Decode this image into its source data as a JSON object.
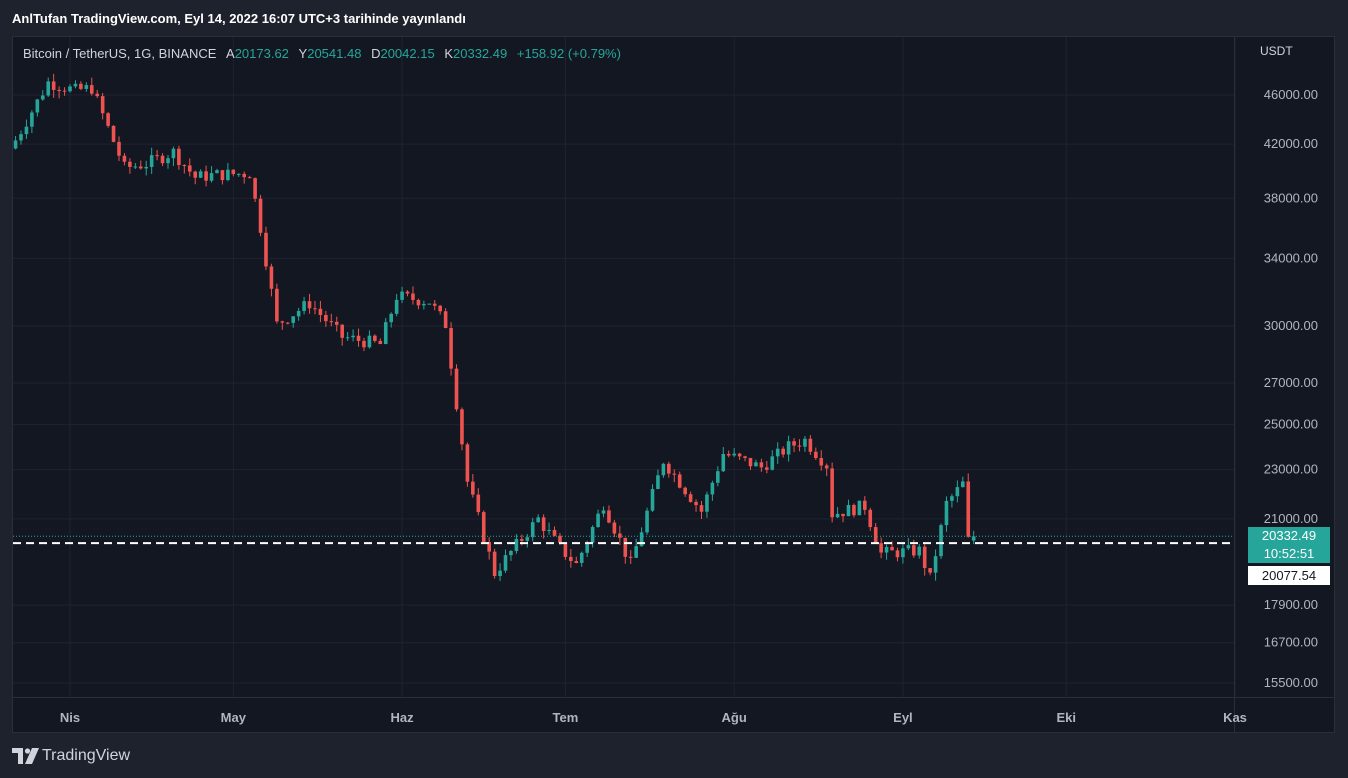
{
  "publisher_line": "AnlTufan TradingView.com, Eyl 14, 2022 16:07 UTC+3 tarihinde yayınlandı",
  "legend": {
    "symbol": "Bitcoin / TetherUS, 1G, BINANCE",
    "open_label": "A",
    "open": "20173.62",
    "high_label": "Y",
    "high": "20541.48",
    "low_label": "D",
    "low": "20042.15",
    "close_label": "K",
    "close": "20332.49",
    "change": "+158.92 (+0.79%)"
  },
  "axis_unit": "USDT",
  "last_price_tag": {
    "price": "20332.49",
    "countdown": "10:52:51"
  },
  "line_price_tag": "20077.54",
  "footer_brand": "TradingView",
  "colors": {
    "up": "#26a69a",
    "down": "#ef5350",
    "background": "#131722",
    "grid": "#1f2331",
    "axis_text": "#b2b5be"
  },
  "chart_data": {
    "type": "candlestick",
    "y_scale": "log",
    "ylim": [
      15000,
      50000
    ],
    "y_ticks": [
      "46000.00",
      "42000.00",
      "38000.00",
      "34000.00",
      "30000.00",
      "27000.00",
      "25000.00",
      "23000.00",
      "21000.00",
      "17900.00",
      "16700.00",
      "15500.00"
    ],
    "x_ticks": [
      "Nis",
      "May",
      "Haz",
      "Tem",
      "Ağu",
      "Eyl",
      "Eki",
      "Kas"
    ],
    "x_tick_dates": [
      "2022-04-01",
      "2022-05-01",
      "2022-06-01",
      "2022-07-01",
      "2022-08-01",
      "2022-09-01",
      "2022-10-01",
      "2022-11-01"
    ],
    "x_range": [
      "2022-03-22",
      "2022-11-01"
    ],
    "horizontal_line": 20077.54,
    "last_price": 20332.49,
    "close_anchors": [
      [
        "2022-03-22",
        42300
      ],
      [
        "2022-03-28",
        47100
      ],
      [
        "2022-04-02",
        46400
      ],
      [
        "2022-04-05",
        46600
      ],
      [
        "2022-04-11",
        40200
      ],
      [
        "2022-04-15",
        40500
      ],
      [
        "2022-04-20",
        41400
      ],
      [
        "2022-04-24",
        39500
      ],
      [
        "2022-04-28",
        39700
      ],
      [
        "2022-05-04",
        39800
      ],
      [
        "2022-05-06",
        36000
      ],
      [
        "2022-05-09",
        30100
      ],
      [
        "2022-05-15",
        31300
      ],
      [
        "2022-05-21",
        29400
      ],
      [
        "2022-05-28",
        29000
      ],
      [
        "2022-05-31",
        31700
      ],
      [
        "2022-06-06",
        31400
      ],
      [
        "2022-06-09",
        30100
      ],
      [
        "2022-06-13",
        22500
      ],
      [
        "2022-06-18",
        19000
      ],
      [
        "2022-06-22",
        20000
      ],
      [
        "2022-06-26",
        21000
      ],
      [
        "2022-06-30",
        19900
      ],
      [
        "2022-07-03",
        19300
      ],
      [
        "2022-07-08",
        21600
      ],
      [
        "2022-07-13",
        19300
      ],
      [
        "2022-07-19",
        23400
      ],
      [
        "2022-07-26",
        21300
      ],
      [
        "2022-07-30",
        23700
      ],
      [
        "2022-08-06",
        23100
      ],
      [
        "2022-08-11",
        24000
      ],
      [
        "2022-08-14",
        24300
      ],
      [
        "2022-08-18",
        23200
      ],
      [
        "2022-08-19",
        21200
      ],
      [
        "2022-08-25",
        21500
      ],
      [
        "2022-08-28",
        19700
      ],
      [
        "2022-09-04",
        19800
      ],
      [
        "2022-09-06",
        18800
      ],
      [
        "2022-09-09",
        21600
      ],
      [
        "2022-09-12",
        22400
      ],
      [
        "2022-09-13",
        20170
      ],
      [
        "2022-09-14",
        20332
      ]
    ]
  }
}
